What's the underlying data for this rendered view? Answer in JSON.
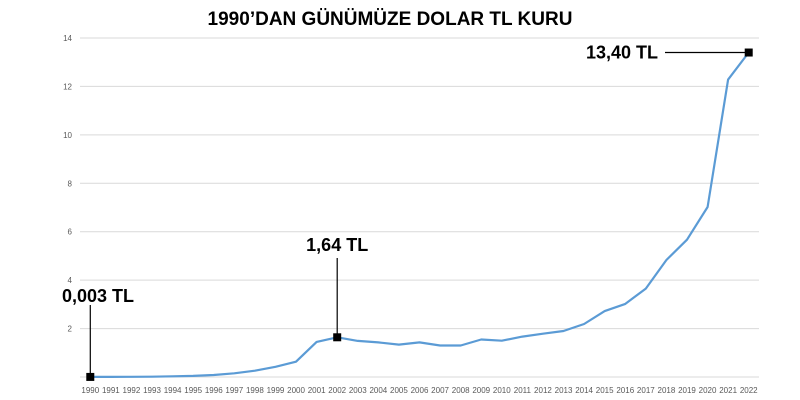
{
  "chart_data": {
    "type": "line",
    "title": "1990’DAN GÜNÜMÜZE DOLAR TL KURU",
    "xlabel": "",
    "ylabel": "",
    "ylim": [
      0,
      14
    ],
    "y_ticks": [
      "2",
      "4",
      "6",
      "8",
      "10",
      "12",
      "14"
    ],
    "grid": true,
    "legend": "none",
    "categories": [
      "1990",
      "1991",
      "1992",
      "1993",
      "1994",
      "1995",
      "1996",
      "1997",
      "1998",
      "1999",
      "2000",
      "2001",
      "2002",
      "2003",
      "2004",
      "2005",
      "2006",
      "2007",
      "2008",
      "2009",
      "2010",
      "2011",
      "2012",
      "2013",
      "2014",
      "2015",
      "2016",
      "2017",
      "2018",
      "2019",
      "2020",
      "2021",
      "2022"
    ],
    "series": [
      {
        "values": [
          0.003,
          0.005,
          0.008,
          0.011,
          0.03,
          0.046,
          0.081,
          0.152,
          0.26,
          0.42,
          0.63,
          1.45,
          1.64,
          1.49,
          1.43,
          1.34,
          1.43,
          1.3,
          1.3,
          1.55,
          1.5,
          1.67,
          1.79,
          1.9,
          2.19,
          2.72,
          3.02,
          3.65,
          4.83,
          5.67,
          7.02,
          12.28,
          13.4
        ],
        "color": "#5B9BD5"
      }
    ],
    "annotations": [
      {
        "text": "0,003 TL",
        "x": "1990",
        "y": 0.003
      },
      {
        "text": "1,64 TL",
        "x": "2002",
        "y": 1.64
      },
      {
        "text": "13,40 TL",
        "x": "2022",
        "y": 13.4
      }
    ]
  }
}
